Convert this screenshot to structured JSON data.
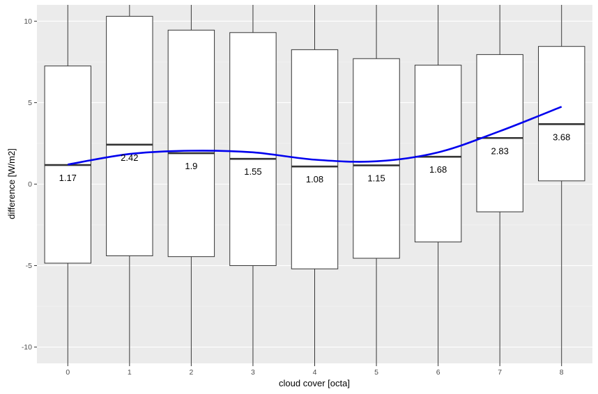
{
  "chart_data": {
    "type": "box",
    "xlabel": "cloud cover [octa]",
    "ylabel": "difference [W/m2]",
    "ylim": [
      -11,
      11
    ],
    "y_ticks": [
      -10,
      -5,
      0,
      5,
      10
    ],
    "y_tick_labels": [
      "-10",
      "-5",
      "0",
      "5",
      "10"
    ],
    "grid": true,
    "panel_background": "#ebebeb",
    "box_fill": "#ffffff",
    "box_stroke": "#333333",
    "median_stroke": "#333333",
    "trend_color": "#0000ee",
    "categories": [
      "0",
      "1",
      "2",
      "3",
      "4",
      "5",
      "6",
      "7",
      "8"
    ],
    "boxes": [
      {
        "q1": -4.85,
        "median": 1.17,
        "q3": 7.25,
        "whisker_low": -11,
        "whisker_high": 11,
        "label": "1.17"
      },
      {
        "q1": -4.4,
        "median": 2.42,
        "q3": 10.3,
        "whisker_low": -11,
        "whisker_high": 11,
        "label": "2.42"
      },
      {
        "q1": -4.45,
        "median": 1.9,
        "q3": 9.45,
        "whisker_low": -11,
        "whisker_high": 11,
        "label": "1.9"
      },
      {
        "q1": -5.0,
        "median": 1.55,
        "q3": 9.3,
        "whisker_low": -11,
        "whisker_high": 11,
        "label": "1.55"
      },
      {
        "q1": -5.2,
        "median": 1.08,
        "q3": 8.25,
        "whisker_low": -11,
        "whisker_high": 11,
        "label": "1.08"
      },
      {
        "q1": -4.55,
        "median": 1.15,
        "q3": 7.7,
        "whisker_low": -11,
        "whisker_high": 11,
        "label": "1.15"
      },
      {
        "q1": -3.55,
        "median": 1.68,
        "q3": 7.3,
        "whisker_low": -11,
        "whisker_high": 11,
        "label": "1.68"
      },
      {
        "q1": -1.7,
        "median": 2.83,
        "q3": 7.95,
        "whisker_low": -11,
        "whisker_high": 11,
        "label": "2.83"
      },
      {
        "q1": 0.2,
        "median": 3.68,
        "q3": 8.45,
        "whisker_low": -11,
        "whisker_high": 11,
        "label": "3.68"
      }
    ],
    "trend_line": {
      "x": [
        0,
        1,
        2,
        3,
        4,
        5,
        6,
        7,
        8
      ],
      "y": [
        1.2,
        1.85,
        2.05,
        1.95,
        1.5,
        1.4,
        1.95,
        3.25,
        4.75
      ]
    }
  }
}
